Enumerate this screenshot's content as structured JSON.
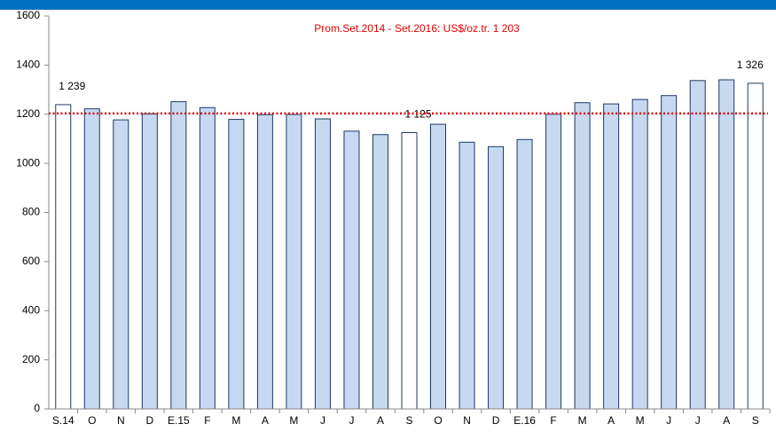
{
  "chart_data": {
    "type": "bar",
    "annotation": "Prom.Set.2014 - Set.2016: US$/oz.tr. 1 203",
    "average": 1203,
    "average_color": "#e00000",
    "categories": [
      "S.14",
      "O",
      "N",
      "D",
      "E.15",
      "F",
      "M",
      "A",
      "M",
      "J",
      "J",
      "A",
      "S",
      "O",
      "N",
      "D",
      "E.16",
      "F",
      "M",
      "A",
      "M",
      "J",
      "J",
      "A",
      "S"
    ],
    "values": [
      1239,
      1222,
      1177,
      1201,
      1251,
      1227,
      1179,
      1198,
      1199,
      1181,
      1131,
      1117,
      1125,
      1159,
      1086,
      1068,
      1097,
      1200,
      1247,
      1242,
      1260,
      1276,
      1337,
      1340,
      1326
    ],
    "value_labels": [
      "1 239",
      null,
      null,
      null,
      null,
      null,
      null,
      null,
      null,
      null,
      null,
      null,
      "1 125",
      null,
      null,
      null,
      null,
      null,
      null,
      null,
      null,
      null,
      null,
      null,
      "1 326"
    ],
    "color": "#c6d9f1",
    "highlight_color": "#ffffff",
    "ylim": [
      0,
      1600
    ],
    "yticks": [
      0,
      200,
      400,
      600,
      800,
      1000,
      1200,
      1400,
      1600
    ],
    "grid": false
  }
}
